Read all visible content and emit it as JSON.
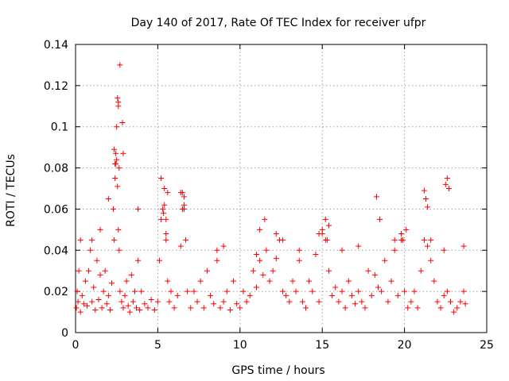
{
  "chart_data": {
    "type": "scatter",
    "title": "Day 140 of 2017, Rate Of TEC Index for receiver ufpr",
    "xlabel": "GPS time / hours",
    "ylabel": "ROTI / TECUs",
    "xlim": [
      0,
      25
    ],
    "ylim": [
      0,
      0.14
    ],
    "xticks": [
      "0",
      "5",
      "10",
      "15",
      "20",
      "25"
    ],
    "yticks": [
      "0",
      "0.02",
      "0.04",
      "0.06",
      "0.08",
      "0.1",
      "0.12",
      "0.14"
    ],
    "grid": true,
    "marker": "+",
    "color": "#ff0000",
    "series": [
      {
        "name": "ROTI",
        "x": [
          0.05,
          0.1,
          0.15,
          0.2,
          0.3,
          0.4,
          0.5,
          0.6,
          0.7,
          0.8,
          0.9,
          1.0,
          1.1,
          1.2,
          1.3,
          1.4,
          1.5,
          1.6,
          1.7,
          1.8,
          1.9,
          2.0,
          2.1,
          2.2,
          2.3,
          2.35,
          2.4,
          2.45,
          2.5,
          2.55,
          2.6,
          2.65,
          2.7,
          2.8,
          2.9,
          3.0,
          3.1,
          3.2,
          3.3,
          3.4,
          3.5,
          3.6,
          3.7,
          3.8,
          3.9,
          4.0,
          4.2,
          4.4,
          4.6,
          4.8,
          5.0,
          5.1,
          5.2,
          5.3,
          5.4,
          5.5,
          5.6,
          5.7,
          5.8,
          6.0,
          6.2,
          6.4,
          6.5,
          6.6,
          6.7,
          6.8,
          7.0,
          7.2,
          7.4,
          7.6,
          7.8,
          8.0,
          8.2,
          8.4,
          8.6,
          8.8,
          9.0,
          9.2,
          9.4,
          9.6,
          9.8,
          10.0,
          10.2,
          10.4,
          10.6,
          10.8,
          11.0,
          11.2,
          11.4,
          11.6,
          11.8,
          12.0,
          12.2,
          12.4,
          12.6,
          12.8,
          13.0,
          13.2,
          13.4,
          13.6,
          13.8,
          14.0,
          14.2,
          14.4,
          14.6,
          14.8,
          15.0,
          15.2,
          15.4,
          15.6,
          15.8,
          16.0,
          16.2,
          16.4,
          16.6,
          16.8,
          17.0,
          17.2,
          17.4,
          17.6,
          17.8,
          18.0,
          18.2,
          18.4,
          18.6,
          18.8,
          19.0,
          19.2,
          19.4,
          19.6,
          19.8,
          20.0,
          20.2,
          20.4,
          20.6,
          20.8,
          21.0,
          21.2,
          21.4,
          21.6,
          21.8,
          22.0,
          22.2,
          22.4,
          22.6,
          22.8,
          23.0,
          23.2,
          23.4,
          23.6,
          23.7,
          0.3,
          1.0,
          1.5,
          2.0,
          2.4,
          2.5,
          2.6,
          2.7,
          2.9,
          3.8,
          5.2,
          5.4,
          5.5,
          5.6,
          6.4,
          6.6,
          8.6,
          9.0,
          11.0,
          11.5,
          12.2,
          13.6,
          14.8,
          15.2,
          15.4,
          16.2,
          17.2,
          18.3,
          18.5,
          19.4,
          19.8,
          20.1,
          21.2,
          21.4,
          21.6,
          22.4,
          22.6,
          22.7,
          23.6,
          2.35,
          2.45,
          2.55,
          2.6,
          2.65,
          2.85,
          5.35,
          5.5,
          6.5,
          6.6,
          11.2,
          12.6,
          15.0,
          15.3,
          19.9,
          21.3,
          22.5
        ],
        "y": [
          0.012,
          0.02,
          0.015,
          0.03,
          0.01,
          0.018,
          0.014,
          0.025,
          0.013,
          0.03,
          0.04,
          0.015,
          0.022,
          0.011,
          0.035,
          0.016,
          0.028,
          0.012,
          0.02,
          0.03,
          0.014,
          0.018,
          0.011,
          0.024,
          0.06,
          0.045,
          0.082,
          0.087,
          0.084,
          0.071,
          0.05,
          0.04,
          0.02,
          0.015,
          0.012,
          0.018,
          0.025,
          0.013,
          0.01,
          0.028,
          0.015,
          0.02,
          0.012,
          0.035,
          0.011,
          0.02,
          0.014,
          0.012,
          0.016,
          0.011,
          0.015,
          0.035,
          0.055,
          0.06,
          0.07,
          0.045,
          0.025,
          0.015,
          0.02,
          0.012,
          0.018,
          0.042,
          0.06,
          0.066,
          0.045,
          0.02,
          0.012,
          0.02,
          0.015,
          0.025,
          0.012,
          0.03,
          0.018,
          0.014,
          0.035,
          0.012,
          0.015,
          0.02,
          0.011,
          0.025,
          0.014,
          0.012,
          0.02,
          0.015,
          0.018,
          0.03,
          0.022,
          0.035,
          0.028,
          0.04,
          0.025,
          0.03,
          0.036,
          0.045,
          0.02,
          0.018,
          0.015,
          0.025,
          0.02,
          0.035,
          0.015,
          0.012,
          0.025,
          0.02,
          0.038,
          0.015,
          0.048,
          0.045,
          0.03,
          0.018,
          0.022,
          0.015,
          0.02,
          0.012,
          0.025,
          0.018,
          0.014,
          0.02,
          0.015,
          0.012,
          0.03,
          0.018,
          0.028,
          0.022,
          0.02,
          0.035,
          0.015,
          0.025,
          0.04,
          0.018,
          0.045,
          0.02,
          0.012,
          0.015,
          0.02,
          0.012,
          0.03,
          0.045,
          0.042,
          0.035,
          0.025,
          0.015,
          0.012,
          0.018,
          0.02,
          0.015,
          0.01,
          0.012,
          0.015,
          0.02,
          0.014,
          0.045,
          0.045,
          0.05,
          0.065,
          0.075,
          0.1,
          0.112,
          0.13,
          0.087,
          0.06,
          0.075,
          0.062,
          0.055,
          0.068,
          0.068,
          0.062,
          0.04,
          0.042,
          0.038,
          0.055,
          0.048,
          0.04,
          0.048,
          0.055,
          0.052,
          0.04,
          0.042,
          0.066,
          0.055,
          0.045,
          0.048,
          0.05,
          0.069,
          0.061,
          0.045,
          0.04,
          0.075,
          0.07,
          0.042,
          0.089,
          0.082,
          0.114,
          0.11,
          0.08,
          0.102,
          0.058,
          0.048,
          0.068,
          0.06,
          0.05,
          0.045,
          0.05,
          0.045,
          0.045,
          0.065,
          0.072
        ]
      }
    ]
  }
}
